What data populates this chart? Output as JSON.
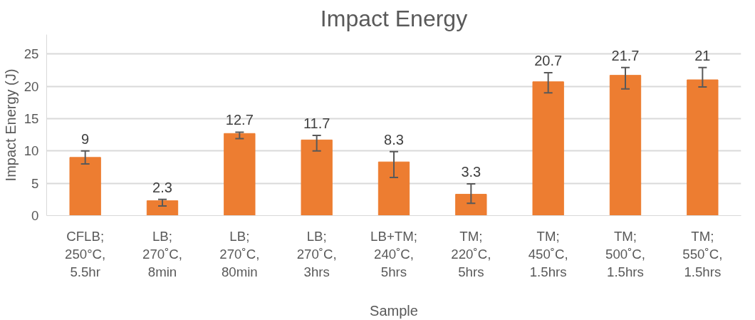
{
  "chart_data": {
    "type": "bar",
    "title": "Impact Energy",
    "xlabel": "Sample",
    "ylabel": "Impact Energy (J)",
    "categories": [
      "CFLB;\n250°C,\n5.5hr",
      "LB;\n270˚C,\n8min",
      "LB;\n270˚C,\n80min",
      "LB;\n270˚C,\n3hrs",
      "LB+TM;\n240˚C,\n5hrs",
      "TM;\n220˚C,\n5hrs",
      "TM;\n450˚C,\n1.5hrs",
      "TM;\n500˚C,\n1.5hrs",
      "TM;\n550˚C,\n1.5hrs"
    ],
    "values": [
      9,
      2.3,
      12.7,
      11.7,
      8.3,
      3.3,
      20.7,
      21.7,
      21
    ],
    "errors": [
      [
        8,
        10
      ],
      [
        1.5,
        2.5
      ],
      [
        11.9,
        12.9
      ],
      [
        10,
        12.4
      ],
      [
        5.9,
        9.9
      ],
      [
        1.9,
        4.9
      ],
      [
        19.0,
        22.1
      ],
      [
        19.6,
        22.9
      ],
      [
        19.9,
        22.9
      ]
    ],
    "color": "#ed7d31",
    "ylim": [
      0,
      28
    ],
    "yticks": [
      0,
      5,
      10,
      15,
      20,
      25
    ],
    "grid": "y",
    "data_labels": true
  }
}
